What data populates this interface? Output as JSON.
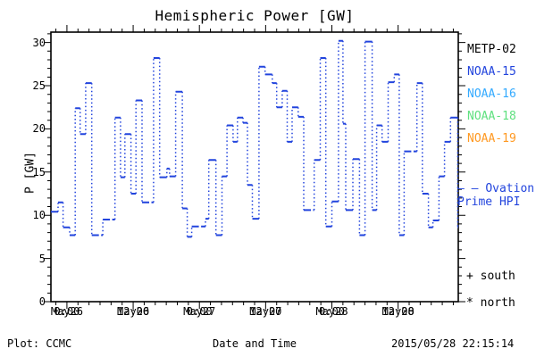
{
  "header": {
    "title": "Hemispheric Power [GW]"
  },
  "axes": {
    "ylabel": "P [GW]",
    "xlabel": "Date and Time"
  },
  "legend": {
    "satellites": [
      {
        "label": "METP-02",
        "color": "#000000"
      },
      {
        "label": "NOAA-15",
        "color": "#2244dd"
      },
      {
        "label": "NOAA-16",
        "color": "#33aaff"
      },
      {
        "label": "NOAA-18",
        "color": "#5fe07f"
      },
      {
        "label": "NOAA-19",
        "color": "#ff9922"
      }
    ],
    "ovation": {
      "marker": "– –",
      "line1": "Ovation",
      "line2": "Prime HPI",
      "color": "#2244dd"
    },
    "hemisphere_markers": [
      {
        "marker": "+",
        "label": "south"
      },
      {
        "marker": "*",
        "label": "north"
      }
    ]
  },
  "footer": {
    "plot_credit": "Plot: CCMC",
    "xaxis_title": "Date and Time",
    "timestamp": "2015/05/28 22:15:14"
  },
  "chart_data": {
    "type": "line",
    "title": "Hemispheric Power [GW]",
    "xlabel": "Date and Time",
    "ylabel": "P [GW]",
    "ylim": [
      0,
      31.2
    ],
    "xlim_hours_from_may26_0000": [
      -2.9,
      70.9
    ],
    "y_major_ticks": [
      0,
      5,
      10,
      15,
      20,
      25,
      30
    ],
    "y_tick_labels": [
      "0",
      "5",
      "10",
      "15",
      "20",
      "25",
      "30"
    ],
    "y_minor_step": 1,
    "x_minor_step_hours": 2,
    "x_ticks": [
      {
        "hour": 0,
        "time": "0:00",
        "date": "May26"
      },
      {
        "hour": 12,
        "time": "12:00",
        "date": "May26"
      },
      {
        "hour": 24,
        "time": "0:00",
        "date": "May27"
      },
      {
        "hour": 36,
        "time": "12:00",
        "date": "May27"
      },
      {
        "hour": 48,
        "time": "0:00",
        "date": "May28"
      },
      {
        "hour": 60,
        "time": "12:00",
        "date": "May28"
      }
    ],
    "grid": false,
    "legend_position": "right-outside",
    "line_style": {
      "horizontal": "dashed-solid",
      "vertical": "dotted"
    },
    "series": [
      {
        "name": "Ovation Prime HPI",
        "color": "#2244dd",
        "step_points_t_gw": [
          [
            -2.9,
            10.4
          ],
          [
            -1.6,
            11.5
          ],
          [
            -0.7,
            8.6
          ],
          [
            0.5,
            7.7
          ],
          [
            1.5,
            22.4
          ],
          [
            2.4,
            19.4
          ],
          [
            3.4,
            25.3
          ],
          [
            4.5,
            7.7
          ],
          [
            6.5,
            9.5
          ],
          [
            8.7,
            21.3
          ],
          [
            9.7,
            14.4
          ],
          [
            10.5,
            19.4
          ],
          [
            11.6,
            12.5
          ],
          [
            12.5,
            23.3
          ],
          [
            13.6,
            11.5
          ],
          [
            15.7,
            28.2
          ],
          [
            16.8,
            14.4
          ],
          [
            18.1,
            15.4
          ],
          [
            18.6,
            14.5
          ],
          [
            19.7,
            24.3
          ],
          [
            20.9,
            10.8
          ],
          [
            21.8,
            7.5
          ],
          [
            22.6,
            8.7
          ],
          [
            25.1,
            9.6
          ],
          [
            25.7,
            16.4
          ],
          [
            27.0,
            7.7
          ],
          [
            28.1,
            14.5
          ],
          [
            29.0,
            20.4
          ],
          [
            30.1,
            18.5
          ],
          [
            30.9,
            21.3
          ],
          [
            31.9,
            20.7
          ],
          [
            32.7,
            13.5
          ],
          [
            33.6,
            9.6
          ],
          [
            34.8,
            27.2
          ],
          [
            35.9,
            26.3
          ],
          [
            37.2,
            25.3
          ],
          [
            38.0,
            22.5
          ],
          [
            39.0,
            24.4
          ],
          [
            39.9,
            18.5
          ],
          [
            40.8,
            22.5
          ],
          [
            41.9,
            21.4
          ],
          [
            42.9,
            10.6
          ],
          [
            44.8,
            16.4
          ],
          [
            45.9,
            28.2
          ],
          [
            46.9,
            8.7
          ],
          [
            48.0,
            11.6
          ],
          [
            49.2,
            30.2
          ],
          [
            50.0,
            20.6
          ],
          [
            50.5,
            10.6
          ],
          [
            51.8,
            16.5
          ],
          [
            53.0,
            7.7
          ],
          [
            54.0,
            30.1
          ],
          [
            55.3,
            10.6
          ],
          [
            56.1,
            20.4
          ],
          [
            57.1,
            18.5
          ],
          [
            58.2,
            25.4
          ],
          [
            59.3,
            26.3
          ],
          [
            60.2,
            7.7
          ],
          [
            61.1,
            17.4
          ],
          [
            63.4,
            25.3
          ],
          [
            64.4,
            12.5
          ],
          [
            65.5,
            8.6
          ],
          [
            66.3,
            9.4
          ],
          [
            67.4,
            14.5
          ],
          [
            68.4,
            18.5
          ],
          [
            69.5,
            21.3
          ],
          [
            70.8,
            8.6
          ]
        ]
      }
    ]
  }
}
